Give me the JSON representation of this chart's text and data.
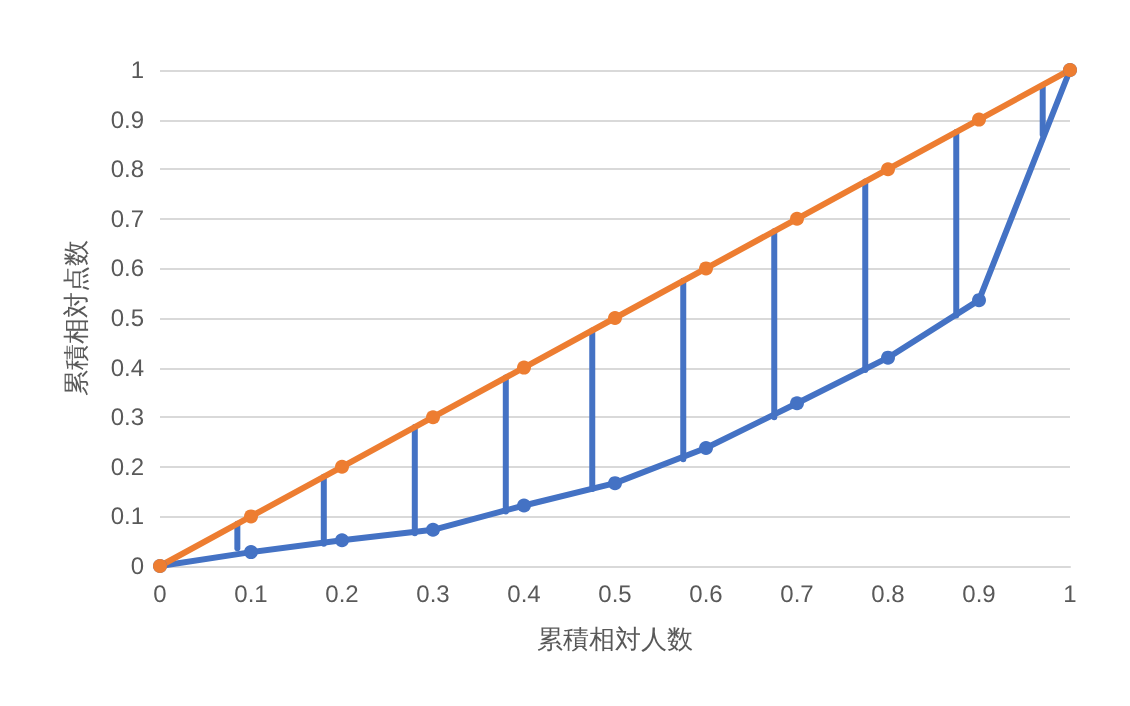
{
  "chart_data": {
    "type": "line",
    "xlabel": "累積相対人数",
    "ylabel": "累積相対点数",
    "grid": "y",
    "xlim": [
      0,
      1
    ],
    "xticks": [
      0,
      0.1,
      0.2,
      0.3,
      0.4,
      0.5,
      0.6,
      0.7,
      0.8,
      0.9,
      1
    ],
    "ylim": [
      0,
      1
    ],
    "yticks": [
      0,
      0.1,
      0.2,
      0.3,
      0.4,
      0.5,
      0.6,
      0.7,
      0.8,
      0.9,
      1
    ],
    "series": [
      {
        "color": "#4472c4",
        "marker": "none",
        "x": [
          0.085,
          0.085
        ],
        "values": [
          0.036,
          0.085
        ]
      },
      {
        "color": "#4472c4",
        "marker": "none",
        "x": [
          0.18,
          0.18
        ],
        "values": [
          0.045,
          0.18
        ]
      },
      {
        "color": "#4472c4",
        "marker": "none",
        "x": [
          0.28,
          0.28
        ],
        "values": [
          0.066,
          0.28
        ]
      },
      {
        "color": "#4472c4",
        "marker": "none",
        "x": [
          0.38,
          0.38
        ],
        "values": [
          0.11,
          0.38
        ]
      },
      {
        "color": "#4472c4",
        "marker": "none",
        "x": [
          0.475,
          0.475
        ],
        "values": [
          0.155,
          0.475
        ]
      },
      {
        "color": "#4472c4",
        "marker": "none",
        "x": [
          0.575,
          0.575
        ],
        "values": [
          0.215,
          0.575
        ]
      },
      {
        "color": "#4472c4",
        "marker": "none",
        "x": [
          0.675,
          0.675
        ],
        "values": [
          0.3,
          0.675
        ]
      },
      {
        "color": "#4472c4",
        "marker": "none",
        "x": [
          0.775,
          0.775
        ],
        "values": [
          0.395,
          0.775
        ]
      },
      {
        "color": "#4472c4",
        "marker": "none",
        "x": [
          0.875,
          0.875
        ],
        "values": [
          0.505,
          0.875
        ]
      },
      {
        "color": "#4472c4",
        "marker": "none",
        "x": [
          0.97,
          0.97
        ],
        "values": [
          0.87,
          0.965
        ]
      },
      {
        "color": "#4472c4",
        "marker": "circle",
        "x": [
          0,
          0.1,
          0.2,
          0.3,
          0.4,
          0.5,
          0.6,
          0.7,
          0.8,
          0.9,
          1
        ],
        "values": [
          0,
          0.028,
          0.052,
          0.073,
          0.122,
          0.167,
          0.238,
          0.328,
          0.42,
          0.536,
          1
        ]
      },
      {
        "color": "#ed7d31",
        "marker": "circle",
        "x": [
          0,
          0.1,
          0.2,
          0.3,
          0.4,
          0.5,
          0.6,
          0.7,
          0.8,
          0.9,
          1
        ],
        "values": [
          0,
          0.1,
          0.2,
          0.3,
          0.4,
          0.5,
          0.6,
          0.7,
          0.8,
          0.9,
          1
        ]
      }
    ]
  }
}
